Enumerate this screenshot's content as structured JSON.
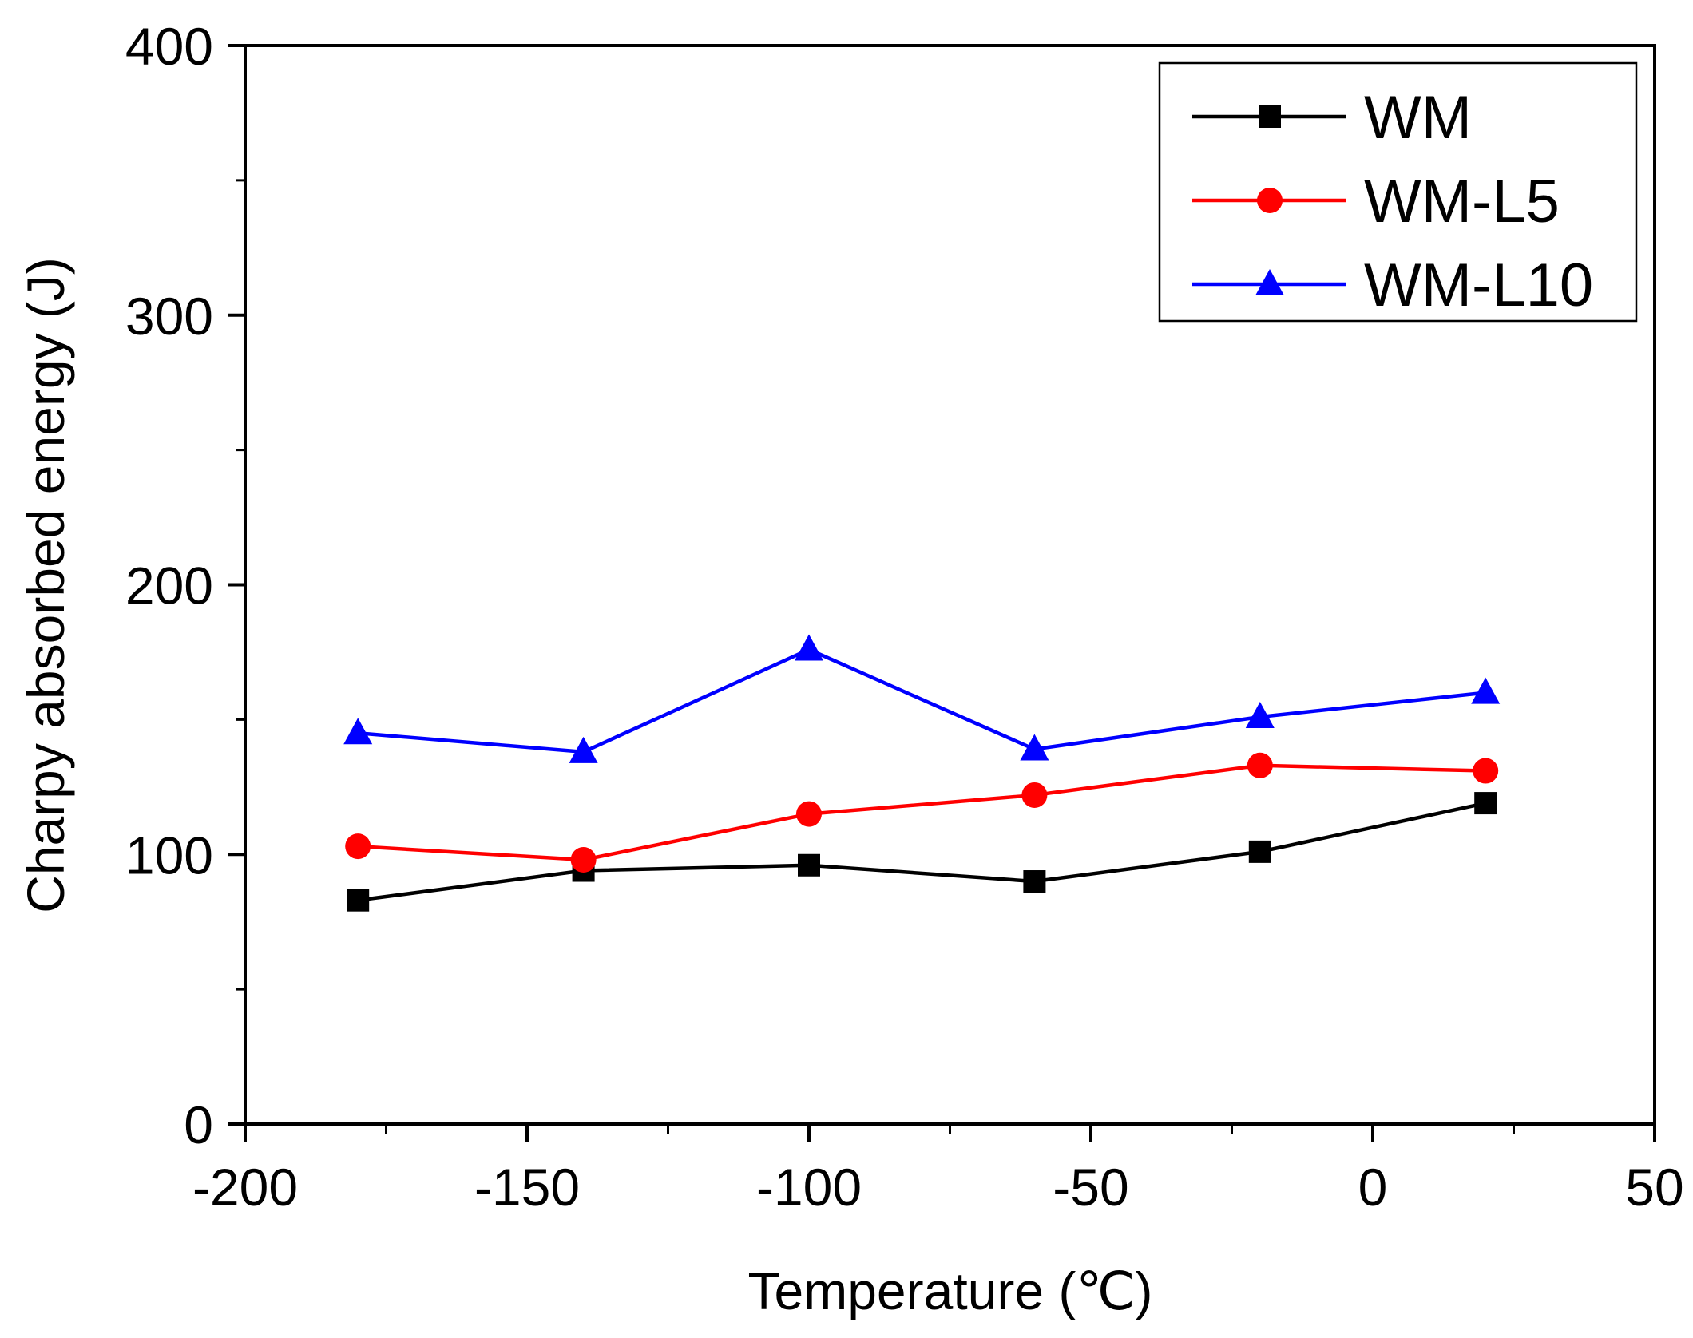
{
  "chart_data": {
    "type": "line",
    "title": "",
    "xlabel": "Temperature (℃)",
    "ylabel": "Charpy absorbed energy (J)",
    "xlim": [
      -200,
      50
    ],
    "ylim": [
      0,
      400
    ],
    "x_ticks": [
      -200,
      -150,
      -100,
      -50,
      0,
      50
    ],
    "x_tick_labels": [
      "-200",
      "-150",
      "-100",
      "-50",
      "0",
      "50"
    ],
    "y_ticks": [
      0,
      100,
      200,
      300,
      400
    ],
    "y_tick_labels": [
      "0",
      "100",
      "200",
      "300",
      "400"
    ],
    "grid": false,
    "legend_position": "top-right",
    "x": [
      -180,
      -140,
      -100,
      -60,
      -20,
      20
    ],
    "series": [
      {
        "name": "WM",
        "color": "#000000",
        "marker": "square",
        "values": [
          83,
          94,
          96,
          90,
          101,
          119
        ]
      },
      {
        "name": "WM-L5",
        "color": "#ff0000",
        "marker": "circle",
        "values": [
          103,
          98,
          115,
          122,
          133,
          131
        ]
      },
      {
        "name": "WM-L10",
        "color": "#0000ff",
        "marker": "triangle",
        "values": [
          145,
          138,
          176,
          139,
          151,
          160
        ]
      }
    ]
  }
}
